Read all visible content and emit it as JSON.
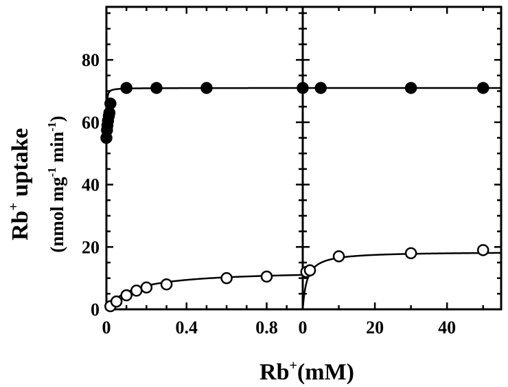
{
  "chart_data": {
    "type": "scatter",
    "title": "",
    "ylabel": {
      "line1_main": "Rb",
      "line1_sup": "+",
      "line1_rest": " uptake",
      "line2_a": "(nmol mg",
      "line2_sup1": "-1",
      "line2_b": " min",
      "line2_sup2": "-1",
      "line2_c": ")"
    },
    "xlabel": {
      "main": "Rb",
      "sup": "+",
      "rest": "(mM)"
    },
    "ylim": [
      0,
      97
    ],
    "yticks": [
      "0",
      "20",
      "40",
      "60",
      "80"
    ],
    "yticks_values": [
      0,
      20,
      40,
      60,
      80
    ],
    "grid": false,
    "legend": "none",
    "panels": [
      {
        "xlim": [
          0,
          0.98
        ],
        "xticks_values": [
          0,
          0.4,
          0.8
        ],
        "xticks": [
          "0",
          "0.4",
          "0.8"
        ],
        "minor_step": 0.1,
        "series": [
          {
            "marker": "filled",
            "x": [
              0,
              0.003,
              0.005,
              0.008,
              0.012,
              0.015,
              0.02,
              0.1,
              0.25,
              0.5,
              0.98
            ],
            "y": [
              55,
              57.5,
              59,
              60.5,
              62,
              63,
              66,
              71,
              71,
              71,
              71
            ],
            "fit": {
              "vmax": 71,
              "km": 0.0012,
              "base": 54.5
            }
          },
          {
            "marker": "open",
            "x": [
              0.02,
              0.05,
              0.1,
              0.15,
              0.2,
              0.3,
              0.6,
              0.8
            ],
            "y": [
              1,
              2.5,
              4.5,
              6,
              7,
              8,
              10,
              10.5
            ],
            "fit": {
              "vmax": 12.5,
              "km": 0.13,
              "base": 0
            }
          }
        ]
      },
      {
        "xlim": [
          0,
          55
        ],
        "xticks_values": [
          0,
          20,
          40
        ],
        "xticks": [
          "0",
          "20",
          "40"
        ],
        "minor_step": 10,
        "series": [
          {
            "marker": "filled",
            "x": [
              5,
              30,
              50
            ],
            "y": [
              71,
              71,
              71
            ],
            "fit": {
              "vmax": 71,
              "km": 0.0001,
              "base": 70.99
            }
          },
          {
            "marker": "open",
            "x": [
              1,
              2,
              10,
              30,
              50
            ],
            "y": [
              12,
              12.5,
              17,
              18,
              19
            ],
            "fit": {
              "vmax": 18.5,
              "km": 1.2,
              "base": 0
            }
          }
        ]
      }
    ]
  }
}
